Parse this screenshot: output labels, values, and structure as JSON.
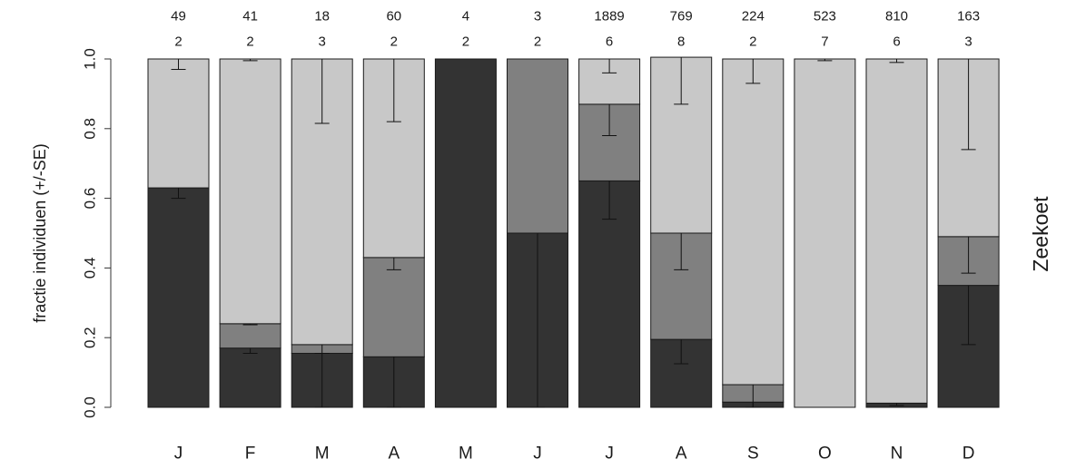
{
  "chart_data": {
    "type": "bar",
    "stacked": true,
    "title": "",
    "xlabel": "",
    "ylabel": "fractie individuen (+/-SE)",
    "side_label": "Zeekoet",
    "ylim": [
      0,
      1
    ],
    "yticks": [
      "0.0",
      "0.2",
      "0.4",
      "0.6",
      "0.8",
      "1.0"
    ],
    "grid": false,
    "legend": "none",
    "categories": [
      "J",
      "F",
      "M",
      "A",
      "M",
      "J",
      "J",
      "A",
      "S",
      "O",
      "N",
      "D"
    ],
    "counts_top": [
      "49",
      "41",
      "18",
      "60",
      "4",
      "3",
      "1889",
      "769",
      "224",
      "523",
      "810",
      "163"
    ],
    "counts_bottom": [
      "2",
      "2",
      "3",
      "2",
      "2",
      "2",
      "6",
      "8",
      "2",
      "7",
      "6",
      "3"
    ],
    "colors": [
      "#333333",
      "#808080",
      "#c8c8c8"
    ],
    "series": [
      {
        "values": [
          0.63,
          0.17,
          0.155,
          0.145,
          1.0,
          0.5,
          0.65,
          0.195,
          0.015,
          0.0,
          0.012,
          0.35
        ],
        "error_low": [
          0.6,
          0.155,
          0.0,
          0.0,
          null,
          0.0,
          0.54,
          0.125,
          0.0,
          null,
          0.005,
          0.18
        ]
      },
      {
        "values": [
          0.0,
          0.07,
          0.025,
          0.285,
          0.0,
          0.5,
          0.22,
          0.305,
          0.05,
          0.0,
          0.0,
          0.14
        ],
        "error_low": [
          null,
          0.237,
          0.155,
          0.395,
          null,
          null,
          0.78,
          0.395,
          0.0,
          null,
          null,
          0.385
        ]
      },
      {
        "values": [
          0.37,
          0.76,
          0.82,
          0.57,
          0.0,
          0.0,
          0.13,
          0.505,
          0.935,
          1.0,
          0.988,
          0.51
        ],
        "error_low": [
          0.97,
          0.995,
          0.815,
          0.82,
          null,
          null,
          0.96,
          0.87,
          0.93,
          0.995,
          0.99,
          0.74
        ]
      }
    ]
  }
}
